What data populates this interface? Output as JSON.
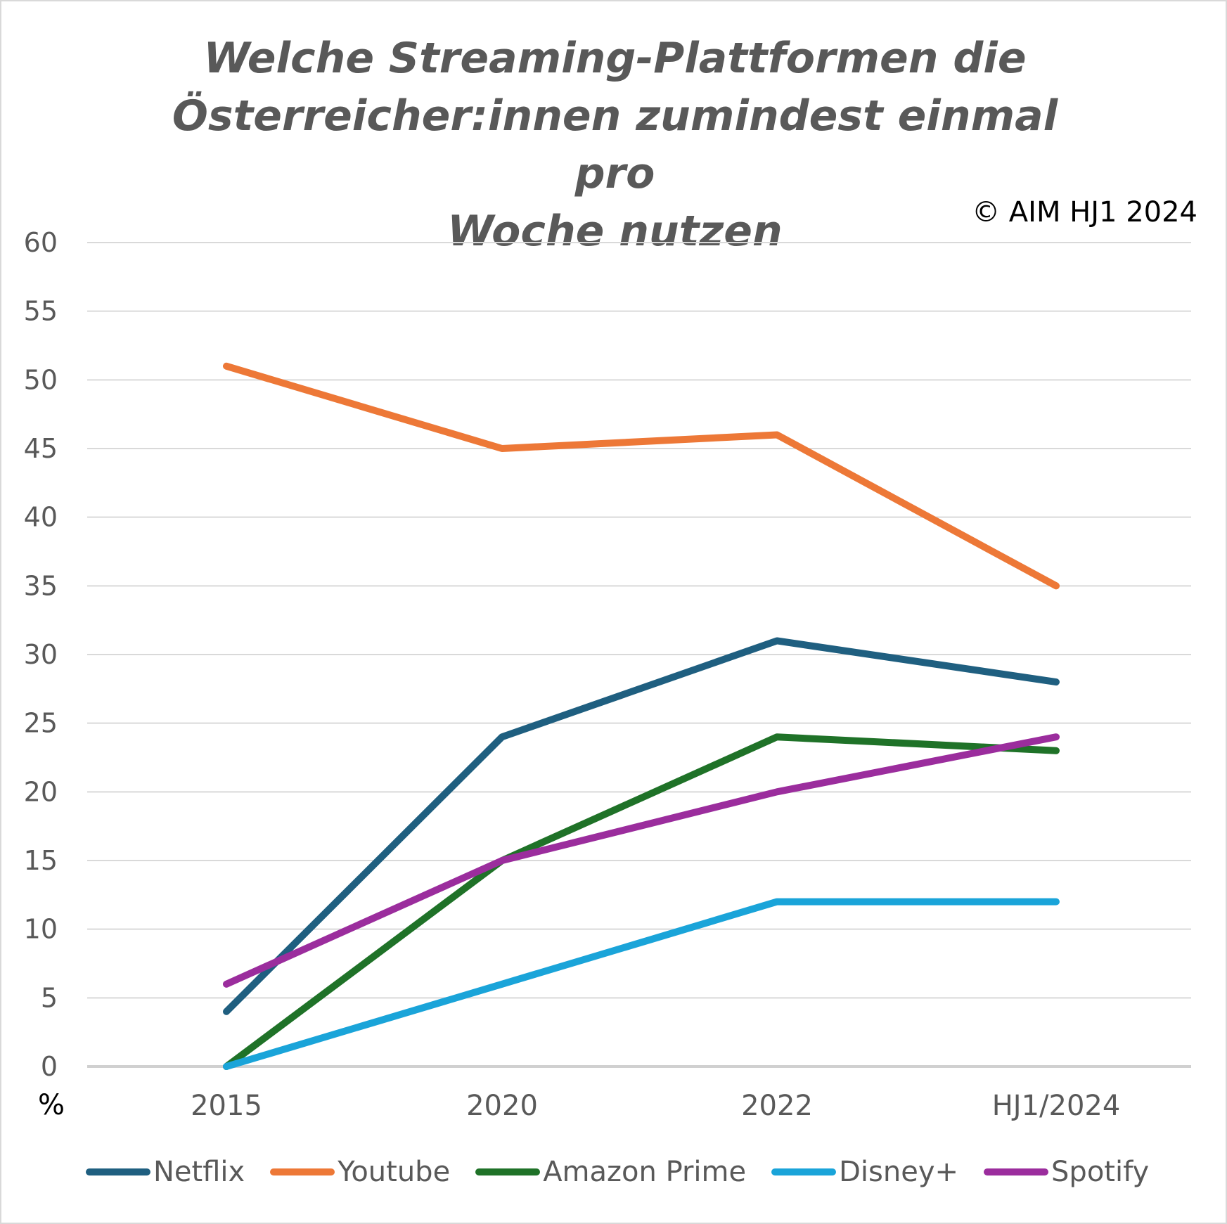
{
  "chart_data": {
    "type": "line",
    "title_lines": [
      "Welche Streaming-Plattformen die",
      "Österreicher:innen zumindest einmal pro",
      "Woche nutzen"
    ],
    "source": "© AIM HJ1 2024",
    "ylabel": "%",
    "xlabel": "",
    "categories": [
      "2015",
      "2020",
      "2022",
      "HJ1/2024"
    ],
    "ylim": [
      0,
      60
    ],
    "yticks": [
      0,
      5,
      10,
      15,
      20,
      25,
      30,
      35,
      40,
      45,
      50,
      55,
      60
    ],
    "grid": true,
    "legend_position": "bottom",
    "series": [
      {
        "name": "Netflix",
        "color": "#1f5f80",
        "values": [
          4,
          24,
          31,
          28
        ]
      },
      {
        "name": "Youtube",
        "color": "#ed7837",
        "values": [
          51,
          45,
          46,
          35
        ]
      },
      {
        "name": "Amazon Prime",
        "color": "#1f7228",
        "values": [
          0,
          15,
          24,
          23
        ]
      },
      {
        "name": "Disney+",
        "color": "#1aa4d9",
        "values": [
          0,
          6,
          12,
          12
        ]
      },
      {
        "name": "Spotify",
        "color": "#9b2d9d",
        "values": [
          6,
          15,
          20,
          24
        ]
      }
    ]
  }
}
